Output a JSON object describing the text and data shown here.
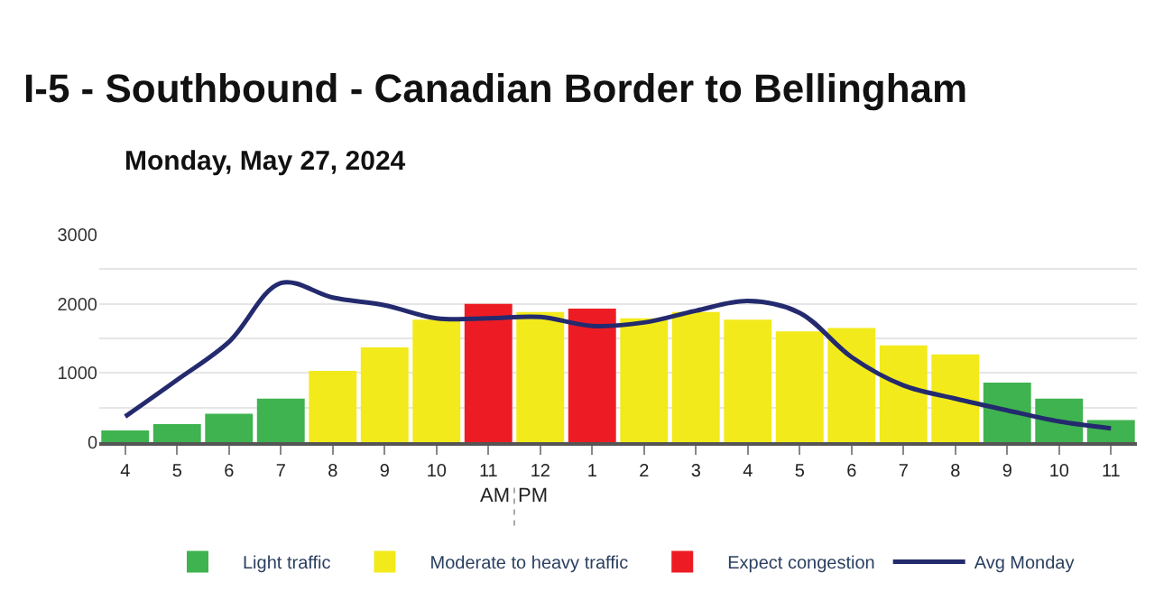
{
  "chart_data": {
    "type": "bar",
    "title": "I-5 - Southbound - Canadian Border to Bellingham",
    "subtitle": "Monday, May 27, 2024",
    "categories": [
      "4",
      "5",
      "6",
      "7",
      "8",
      "9",
      "10",
      "11",
      "12",
      "1",
      "2",
      "3",
      "4",
      "5",
      "6",
      "7",
      "8",
      "9",
      "10",
      "11"
    ],
    "series": [
      {
        "name": "Light traffic",
        "color": "#3fb34f",
        "values": [
          170,
          260,
          410,
          630,
          null,
          null,
          null,
          null,
          null,
          null,
          null,
          null,
          null,
          null,
          null,
          null,
          null,
          860,
          630,
          320
        ]
      },
      {
        "name": "Moderate to heavy traffic",
        "color": "#f2ea1b",
        "values": [
          null,
          null,
          null,
          null,
          1030,
          1370,
          1770,
          null,
          1880,
          null,
          1790,
          1880,
          1770,
          1600,
          1650,
          1400,
          1270,
          null,
          null,
          null
        ]
      },
      {
        "name": "Expect congestion",
        "color": "#ed1c24",
        "values": [
          null,
          null,
          null,
          null,
          null,
          null,
          null,
          2000,
          null,
          1930,
          null,
          null,
          null,
          null,
          null,
          null,
          null,
          null,
          null,
          null
        ]
      },
      {
        "name": "Avg Monday",
        "type": "line",
        "color": "#242a6e",
        "values": [
          370,
          900,
          1450,
          2300,
          2090,
          1980,
          1790,
          1790,
          1810,
          1680,
          1730,
          1900,
          2040,
          1870,
          1230,
          820,
          630,
          460,
          300,
          200
        ]
      }
    ],
    "ylim": [
      0,
      3000
    ],
    "yticks": [
      0,
      {
        "value": 500,
        "label": null
      },
      1000,
      {
        "value": 1500,
        "label": null
      },
      2000,
      {
        "value": 2500,
        "label": null
      },
      3000
    ],
    "grid": "y",
    "legend": "bottom",
    "annotations": [
      "AM",
      "PM"
    ]
  }
}
